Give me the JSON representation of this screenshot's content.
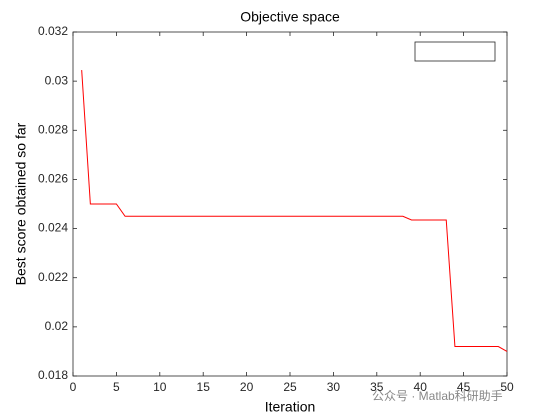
{
  "chart_data": {
    "type": "line",
    "title": "Objective space",
    "x_label": "Iteration",
    "y_label": "Best score obtained so far",
    "x": [
      1,
      2,
      3,
      4,
      5,
      6,
      7,
      8,
      9,
      10,
      11,
      12,
      13,
      14,
      15,
      16,
      17,
      18,
      19,
      20,
      21,
      22,
      23,
      24,
      25,
      26,
      27,
      28,
      29,
      30,
      31,
      32,
      33,
      34,
      35,
      36,
      37,
      38,
      39,
      40,
      41,
      42,
      43,
      44,
      45,
      46,
      47,
      48,
      49,
      50
    ],
    "series": [
      {
        "color": "#ff0000",
        "values": [
          0.03045,
          0.025,
          0.025,
          0.025,
          0.025,
          0.0245,
          0.0245,
          0.0245,
          0.0245,
          0.0245,
          0.0245,
          0.0245,
          0.0245,
          0.0245,
          0.0245,
          0.0245,
          0.0245,
          0.0245,
          0.0245,
          0.0245,
          0.0245,
          0.0245,
          0.0245,
          0.0245,
          0.0245,
          0.0245,
          0.0245,
          0.0245,
          0.0245,
          0.0245,
          0.0245,
          0.0245,
          0.0245,
          0.0245,
          0.0245,
          0.0245,
          0.0245,
          0.0245,
          0.02435,
          0.02435,
          0.02435,
          0.02435,
          0.02435,
          0.0192,
          0.0192,
          0.0192,
          0.0192,
          0.0192,
          0.0192,
          0.019
        ]
      }
    ],
    "xlim": [
      0,
      50
    ],
    "xticks": [
      0,
      5,
      10,
      15,
      20,
      25,
      30,
      35,
      40,
      45,
      50
    ],
    "ylim": [
      0.018,
      0.032
    ],
    "yticks": [
      0.018,
      0.02,
      0.022,
      0.024,
      0.026,
      0.028,
      0.03,
      0.032
    ],
    "watermark": "公众号 · Matlab科研助手"
  }
}
